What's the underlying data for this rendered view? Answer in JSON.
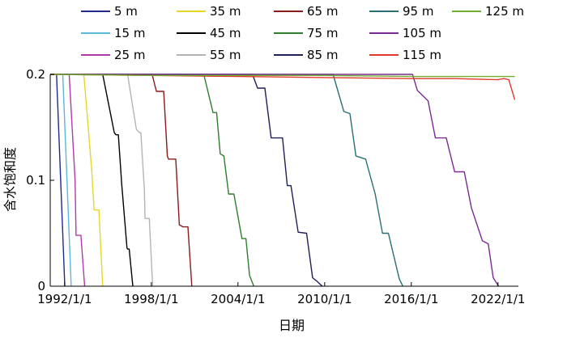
{
  "chart_data": {
    "type": "line",
    "xlabel": "日期",
    "ylabel": "含水饱和度",
    "xlim": [
      "1991-01-01",
      "2023-06-01"
    ],
    "ylim": [
      0,
      0.2
    ],
    "grid": false,
    "legend_placement": "top",
    "x_ticks": [
      "1992/1/1",
      "1998/1/1",
      "2004/1/1",
      "2010/1/1",
      "2016/1/1",
      "2022/1/1"
    ],
    "y_ticks": [
      "0",
      "0.1",
      "0.2"
    ],
    "series": [
      {
        "name": "5 m",
        "color": "#1f2a8a",
        "x": [
          "1991-01-01",
          "1991-06-10",
          "1992-01-05"
        ],
        "y": [
          0.2,
          0.2,
          0
        ]
      },
      {
        "name": "15 m",
        "color": "#5bb8d6",
        "x": [
          "1991-01-01",
          "1991-11-15",
          "1992-06-15"
        ],
        "y": [
          0.2,
          0.2,
          0
        ]
      },
      {
        "name": "25 m",
        "color": "#b03aa8",
        "x": [
          "1991-01-01",
          "1992-04-25",
          "1992-09-20",
          "1992-10-15",
          "1993-01-15",
          "1993-02-15",
          "1993-05-20"
        ],
        "y": [
          0.2,
          0.2,
          0.1,
          0.048,
          0.048,
          0.048,
          0
        ]
      },
      {
        "name": "35 m",
        "color": "#e6d629",
        "x": [
          "1991-01-01",
          "1993-05-01",
          "1993-11-15",
          "1994-01-15",
          "1994-03-15",
          "1994-05-15",
          "1994-08-20"
        ],
        "y": [
          0.2,
          0.2,
          0.11,
          0.072,
          0.072,
          0.072,
          0
        ]
      },
      {
        "name": "45 m",
        "color": "#000000",
        "x": [
          "1991-01-01",
          "1994-08-20",
          "1995-06-10",
          "1995-07-20",
          "1995-09-20",
          "1995-12-15",
          "1996-04-25",
          "1996-05-10",
          "1996-06-20",
          "1996-09-20"
        ],
        "y": [
          0.2,
          0.2,
          0.145,
          0.143,
          0.143,
          0.096,
          0.036,
          0.035,
          0.035,
          0
        ]
      },
      {
        "name": "55 m",
        "color": "#b4b4b4",
        "x": [
          "1991-01-01",
          "1996-05-10",
          "1996-12-20",
          "1997-03-10",
          "1997-04-10",
          "1997-07-10",
          "1997-07-25",
          "1997-08-25",
          "1997-11-10",
          "1998-02-05"
        ],
        "y": [
          0.2,
          0.2,
          0.148,
          0.145,
          0.145,
          0.09,
          0.064,
          0.064,
          0.064,
          0
        ]
      },
      {
        "name": "65 m",
        "color": "#8b1a1a",
        "x": [
          "1991-01-01",
          "1998-01-20",
          "1998-05-10",
          "1998-11-10",
          "1999-02-10",
          "1999-03-10",
          "1999-09-10",
          "1999-12-10",
          "2000-03-10",
          "2000-07-15",
          "2000-10-20"
        ],
        "y": [
          0.2,
          0.2,
          0.184,
          0.184,
          0.123,
          0.12,
          0.12,
          0.058,
          0.056,
          0.056,
          0
        ]
      },
      {
        "name": "75 m",
        "color": "#2e7d2e",
        "x": [
          "1991-01-01",
          "2001-08-20",
          "2002-04-10",
          "2002-07-10",
          "2002-10-10",
          "2003-01-10",
          "2003-05-10",
          "2003-09-20",
          "2004-04-10",
          "2004-07-20",
          "2004-10-20",
          "2005-02-05"
        ],
        "y": [
          0.2,
          0.2,
          0.164,
          0.164,
          0.125,
          0.123,
          0.087,
          0.087,
          0.045,
          0.045,
          0.01,
          0
        ]
      },
      {
        "name": "85 m",
        "color": "#1f1f5a",
        "x": [
          "1991-01-01",
          "2005-01-01",
          "2005-05-10",
          "2005-11-10",
          "2006-04-20",
          "2007-02-01",
          "2007-06-01",
          "2007-09-01",
          "2008-03-01",
          "2008-10-01",
          "2009-03-01",
          "2009-06-10",
          "2009-11-01"
        ],
        "y": [
          0.2,
          0.2,
          0.187,
          0.187,
          0.14,
          0.14,
          0.095,
          0.095,
          0.051,
          0.05,
          0.008,
          0.005,
          0
        ]
      },
      {
        "name": "95 m",
        "color": "#2a6f75",
        "x": [
          "1991-01-01",
          "2010-08-01",
          "2011-05-01",
          "2011-10-01",
          "2012-03-01",
          "2012-11-01",
          "2013-07-01",
          "2014-01-01",
          "2014-06-01",
          "2015-03-01",
          "2015-06-01"
        ],
        "y": [
          0.2,
          0.2,
          0.165,
          0.163,
          0.123,
          0.12,
          0.087,
          0.05,
          0.05,
          0.007,
          0
        ]
      },
      {
        "name": "105 m",
        "color": "#7a2a90",
        "x": [
          "1991-01-01",
          "2016-02-01",
          "2016-06-01",
          "2017-03-01",
          "2017-09-01",
          "2018-06-01",
          "2019-01-01",
          "2019-09-01",
          "2020-03-01",
          "2020-12-01",
          "2021-05-01",
          "2021-09-01",
          "2022-01-15"
        ],
        "y": [
          0.2,
          0.2,
          0.185,
          0.175,
          0.14,
          0.14,
          0.108,
          0.108,
          0.074,
          0.043,
          0.04,
          0.008,
          0
        ]
      },
      {
        "name": "115 m",
        "color": "#e03a2a",
        "x": [
          "1991-01-01",
          "1998-01-01",
          "2004-01-01",
          "2010-01-01",
          "2016-01-01",
          "2019-01-01",
          "2022-01-01",
          "2022-06-01",
          "2022-10-01",
          "2023-03-01"
        ],
        "y": [
          0.2,
          0.199,
          0.198,
          0.197,
          0.196,
          0.196,
          0.195,
          0.196,
          0.195,
          0.176
        ]
      },
      {
        "name": "125 m",
        "color": "#6fae2e",
        "x": [
          "1991-01-01",
          "1998-01-01",
          "2004-01-01",
          "2010-01-01",
          "2016-01-01",
          "2022-01-01",
          "2023-03-01"
        ],
        "y": [
          0.2,
          0.199,
          0.199,
          0.199,
          0.198,
          0.198,
          0.198
        ]
      }
    ]
  }
}
